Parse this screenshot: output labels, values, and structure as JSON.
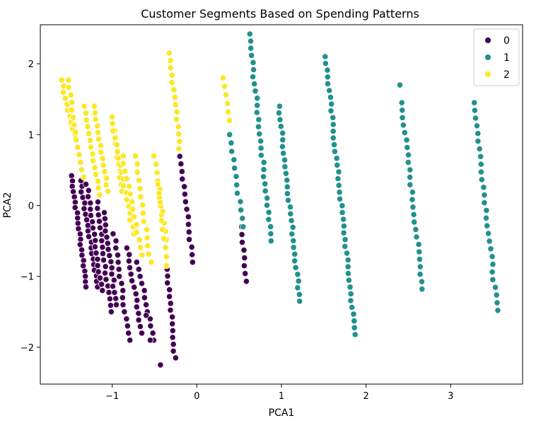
{
  "chart_data": {
    "type": "scatter",
    "title": "Customer Segments Based on Spending Patterns",
    "xlabel": "PCA1",
    "ylabel": "PCA2",
    "xlim": [
      -1.85,
      3.85
    ],
    "ylim": [
      -2.52,
      2.55
    ],
    "x_ticks": [
      -1,
      0,
      1,
      2,
      3
    ],
    "x_tick_labels": [
      "−1",
      "0",
      "1",
      "2",
      "3"
    ],
    "y_ticks": [
      -2,
      -1,
      0,
      1,
      2
    ],
    "y_tick_labels": [
      "−2",
      "−1",
      "0",
      "1",
      "2"
    ],
    "grid": false,
    "legend_position": "top-right",
    "series": [
      {
        "name": "0",
        "color": "#440154",
        "segments": [
          {
            "x0": -1.48,
            "y0": 0.42,
            "x1": -1.3,
            "y1": -1.15,
            "n": 22
          },
          {
            "x0": -1.38,
            "y0": 0.35,
            "x1": -1.17,
            "y1": -1.15,
            "n": 20
          },
          {
            "x0": -1.3,
            "y0": 0.3,
            "x1": -1.12,
            "y1": -1.2,
            "n": 18
          },
          {
            "x0": -1.18,
            "y0": 0.05,
            "x1": -1.02,
            "y1": -1.5,
            "n": 18
          },
          {
            "x0": -1.1,
            "y0": -0.1,
            "x1": -0.95,
            "y1": -1.4,
            "n": 16
          },
          {
            "x0": -0.98,
            "y0": -0.4,
            "x1": -0.8,
            "y1": -1.9,
            "n": 16
          },
          {
            "x0": -0.82,
            "y0": -0.6,
            "x1": -0.65,
            "y1": -1.8,
            "n": 14
          },
          {
            "x0": -0.7,
            "y0": -0.8,
            "x1": -0.5,
            "y1": -1.9,
            "n": 12
          },
          {
            "x0": -0.35,
            "y0": -0.9,
            "x1": -0.26,
            "y1": -2.15,
            "n": 14
          },
          {
            "x0": -0.2,
            "y0": 0.8,
            "x1": -0.05,
            "y1": -0.8,
            "n": 16
          },
          {
            "x0": 0.52,
            "y0": -0.3,
            "x1": 0.58,
            "y1": -1.07,
            "n": 8
          }
        ],
        "points": [
          [
            -0.43,
            -2.25
          ],
          [
            -0.55,
            -1.9
          ],
          [
            -0.6,
            -1.55
          ]
        ]
      },
      {
        "name": "1",
        "color": "#21918c",
        "segments": [
          {
            "x0": 0.38,
            "y0": 1.0,
            "x1": 0.55,
            "y1": -0.3,
            "n": 12
          },
          {
            "x0": 0.62,
            "y0": 2.42,
            "x1": 0.88,
            "y1": -0.5,
            "n": 30
          },
          {
            "x0": 0.97,
            "y0": 1.4,
            "x1": 1.22,
            "y1": -1.35,
            "n": 30
          },
          {
            "x0": 1.52,
            "y0": 2.1,
            "x1": 1.87,
            "y1": -1.82,
            "n": 42
          },
          {
            "x0": 2.42,
            "y0": 1.45,
            "x1": 2.67,
            "y1": -1.18,
            "n": 26
          },
          {
            "x0": 3.28,
            "y0": 1.45,
            "x1": 3.55,
            "y1": -1.48,
            "n": 28
          }
        ],
        "points": [
          [
            2.4,
            1.7
          ]
        ]
      },
      {
        "name": "2",
        "color": "#fde725",
        "segments": [
          {
            "x0": -1.6,
            "y0": 1.77,
            "x1": -1.45,
            "y1": 1.0,
            "n": 10
          },
          {
            "x0": -1.52,
            "y0": 1.77,
            "x1": -1.35,
            "y1": 0.4,
            "n": 14
          },
          {
            "x0": -1.32,
            "y0": 1.4,
            "x1": -1.15,
            "y1": 0.15,
            "n": 14
          },
          {
            "x0": -1.22,
            "y0": 1.4,
            "x1": -1.05,
            "y1": 0.2,
            "n": 14
          },
          {
            "x0": -1.0,
            "y0": 1.25,
            "x1": -0.88,
            "y1": 0.2,
            "n": 12
          },
          {
            "x0": -0.98,
            "y0": 1.05,
            "x1": -0.75,
            "y1": -0.4,
            "n": 16
          },
          {
            "x0": -0.88,
            "y0": 0.7,
            "x1": -0.65,
            "y1": -0.7,
            "n": 14
          },
          {
            "x0": -0.72,
            "y0": 0.7,
            "x1": -0.55,
            "y1": -0.8,
            "n": 14
          },
          {
            "x0": -0.5,
            "y0": 0.7,
            "x1": -0.35,
            "y1": -0.6,
            "n": 12
          },
          {
            "x0": -0.45,
            "y0": 0.3,
            "x1": -0.35,
            "y1": -0.85,
            "n": 10
          },
          {
            "x0": -0.32,
            "y0": 2.15,
            "x1": -0.2,
            "y1": 0.8,
            "n": 14
          },
          {
            "x0": 0.32,
            "y0": 1.8,
            "x1": 0.38,
            "y1": 1.2,
            "n": 6
          }
        ],
        "points": []
      }
    ]
  }
}
